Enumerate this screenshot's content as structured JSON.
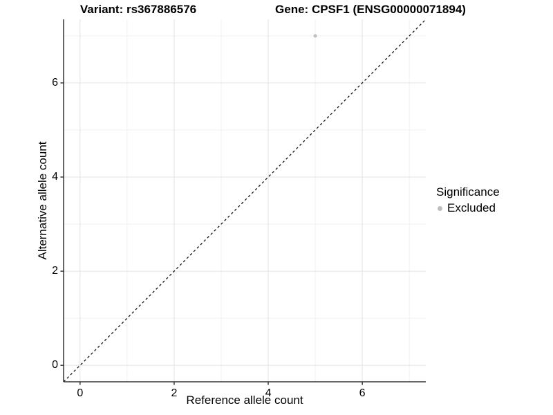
{
  "chart_data": {
    "type": "scatter",
    "title_left": "Variant: rs367886576",
    "title_right": "Gene: CPSF1 (ENSG00000071894)",
    "xlabel": "Reference allele count",
    "ylabel": "Alternative allele count",
    "xlim": [
      -0.35,
      7.35
    ],
    "ylim": [
      -0.35,
      7.35
    ],
    "x_ticks": [
      0,
      2,
      4,
      6
    ],
    "x_tick_labels": [
      "0",
      "2",
      "4",
      "6"
    ],
    "y_ticks": [
      0,
      2,
      4,
      6
    ],
    "y_tick_labels": [
      "0",
      "2",
      "4",
      "6"
    ],
    "x_minor_gridlines": [
      1,
      3,
      5,
      7
    ],
    "y_minor_gridlines": [
      1,
      3,
      5,
      7
    ],
    "grid": true,
    "points": [
      {
        "x": 5,
        "y": 7,
        "significance": "Excluded"
      }
    ],
    "identity_line": {
      "style": "dashed",
      "from": -0.35,
      "to": 7.35
    },
    "legend": {
      "title": "Significance",
      "position": "right",
      "entries": [
        {
          "label": "Excluded",
          "color": "#bebebe"
        }
      ]
    },
    "colors": {
      "grid_major": "#e3e3e3",
      "grid_minor": "#f1f1f1",
      "axis_line": "#333333",
      "identity_line": "#111111",
      "text": "#000000"
    }
  }
}
